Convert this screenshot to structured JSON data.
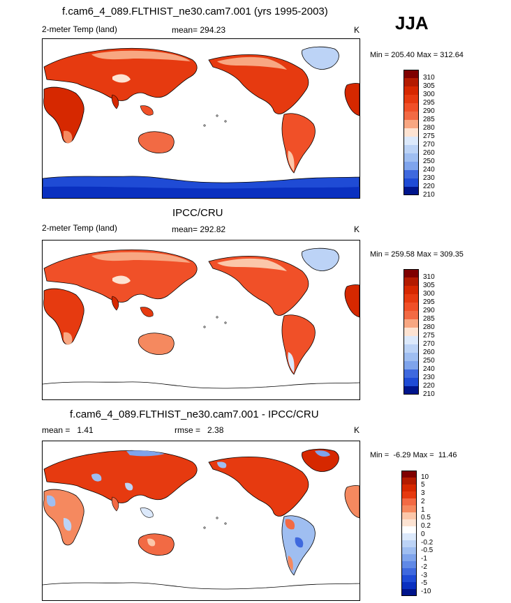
{
  "season": "JJA",
  "colors": {
    "ocean": "#ffffff",
    "coast": "#000000",
    "warm_palette": [
      "#7f0000",
      "#b31b00",
      "#d62800",
      "#e63a10",
      "#f05028",
      "#f26a44",
      "#f5895f",
      "#f8a782",
      "#fbc7aa",
      "#fde3d2",
      "#ffffff",
      "#dce9fb",
      "#bcd3f6",
      "#9fbef1",
      "#7fa4ec",
      "#6089e6",
      "#3f69de",
      "#1f4bd5",
      "#0a30c0",
      "#00158c"
    ],
    "diff_palette": [
      "#7f0000",
      "#b31b00",
      "#d62800",
      "#e63a10",
      "#f26a44",
      "#f5895f",
      "#fbc7aa",
      "#fde3d2",
      "#ffffff",
      "#dce9fb",
      "#bcd3f6",
      "#9fbef1",
      "#7fa4ec",
      "#6089e6",
      "#3f69de",
      "#1f4bd5",
      "#0a30c0",
      "#00158c"
    ]
  },
  "panels": [
    {
      "id": "model",
      "title": "f.cam6_4_089.FLTHIST_ne30.cam7.001 (yrs 1995-2003)",
      "variable": "2-meter Temp (land)",
      "stat": "mean= 294.23",
      "unit": "K",
      "minmax": "Min = 205.40 Max = 312.64",
      "colorbar_labels": [
        "310",
        "305",
        "300",
        "295",
        "290",
        "285",
        "280",
        "275",
        "270",
        "260",
        "250",
        "240",
        "230",
        "220",
        "210"
      ]
    },
    {
      "id": "obs",
      "title": "IPCC/CRU",
      "variable": "2-meter Temp (land)",
      "stat": "mean= 292.82",
      "unit": "K",
      "minmax": "Min = 259.58 Max = 309.35",
      "colorbar_labels": [
        "310",
        "305",
        "300",
        "295",
        "290",
        "285",
        "280",
        "275",
        "270",
        "260",
        "250",
        "240",
        "230",
        "220",
        "210"
      ]
    },
    {
      "id": "diff",
      "title": "f.cam6_4_089.FLTHIST_ne30.cam7.001 - IPCC/CRU",
      "stat_left": "mean =   1.41",
      "stat_mid": "rmse =   2.38",
      "unit": "K",
      "minmax": "Min =  -6.29 Max =  11.46",
      "colorbar_labels": [
        "10",
        "5",
        "3",
        "2",
        "1",
        "0.5",
        "0.2",
        "0",
        "-0.2",
        "-0.5",
        "-1",
        "-2",
        "-3",
        "-5",
        "-10"
      ]
    }
  ]
}
